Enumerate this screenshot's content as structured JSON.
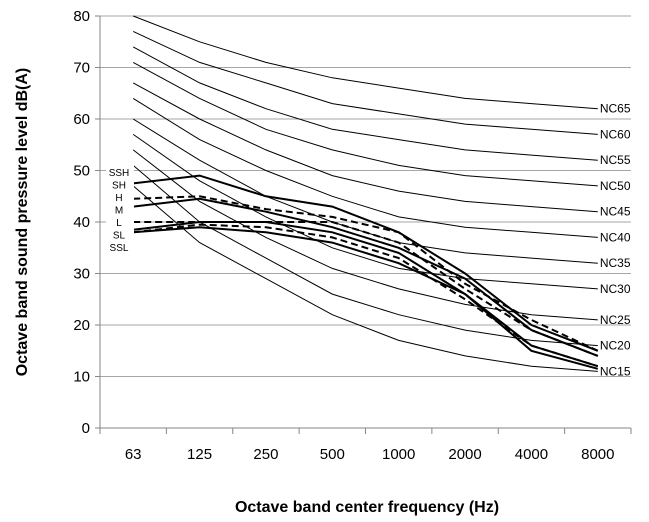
{
  "chart_data": {
    "type": "line",
    "title": "",
    "xlabel": "Octave band center frequency (Hz)",
    "ylabel": "Octave band sound pressure level dB(A)",
    "categories": [
      "63",
      "125",
      "250",
      "500",
      "1000",
      "2000",
      "4000",
      "8000"
    ],
    "ylim": [
      0,
      80
    ],
    "yticks": [
      "0",
      "10",
      "20",
      "30",
      "40",
      "50",
      "60",
      "70",
      "80"
    ],
    "grid": "horizontal",
    "nc_curves": [
      {
        "name": "NC65",
        "values": [
          80,
          75,
          71,
          68,
          66,
          64,
          63,
          62
        ]
      },
      {
        "name": "NC60",
        "values": [
          77,
          71,
          67,
          63,
          61,
          59,
          58,
          57
        ]
      },
      {
        "name": "NC55",
        "values": [
          74,
          67,
          62,
          58,
          56,
          54,
          53,
          52
        ]
      },
      {
        "name": "NC50",
        "values": [
          71,
          64,
          58,
          54,
          51,
          49,
          48,
          47
        ]
      },
      {
        "name": "NC45",
        "values": [
          67,
          60,
          54,
          49,
          46,
          44,
          43,
          42
        ]
      },
      {
        "name": "NC40",
        "values": [
          64,
          56,
          50,
          45,
          41,
          39,
          38,
          37
        ]
      },
      {
        "name": "NC35",
        "values": [
          60,
          52,
          45,
          40,
          36,
          34,
          33,
          32
        ]
      },
      {
        "name": "NC30",
        "values": [
          57,
          48,
          41,
          35,
          31,
          29,
          28,
          27
        ]
      },
      {
        "name": "NC25",
        "values": [
          54,
          44,
          37,
          31,
          27,
          24,
          22,
          21
        ]
      },
      {
        "name": "NC20",
        "values": [
          51,
          40,
          33,
          26,
          22,
          19,
          17,
          16
        ]
      },
      {
        "name": "NC15",
        "values": [
          47,
          36,
          29,
          22,
          17,
          14,
          12,
          11
        ]
      }
    ],
    "modes": [
      {
        "name": "SSH",
        "style": "solid",
        "values": [
          47.5,
          49,
          45,
          43,
          38,
          30,
          20,
          15
        ]
      },
      {
        "name": "SH",
        "style": "solid",
        "values": [
          43,
          44.5,
          42,
          39,
          35,
          29,
          19,
          14
        ]
      },
      {
        "name": "H",
        "style": "dashed",
        "values": [
          44.5,
          45,
          42.5,
          41,
          38,
          28,
          21,
          15
        ]
      },
      {
        "name": "M",
        "style": "dashed",
        "values": [
          40,
          40,
          40,
          40,
          36,
          27,
          19,
          14
        ]
      },
      {
        "name": "L",
        "style": "solid",
        "values": [
          38.5,
          40,
          40,
          38,
          34,
          26,
          16,
          12
        ]
      },
      {
        "name": "SL",
        "style": "dashed",
        "values": [
          38,
          39.5,
          39,
          37,
          33,
          25,
          16,
          12
        ]
      },
      {
        "name": "SSL",
        "style": "solid",
        "values": [
          38,
          39,
          38,
          36,
          32,
          26,
          15,
          11.5
        ]
      }
    ]
  }
}
